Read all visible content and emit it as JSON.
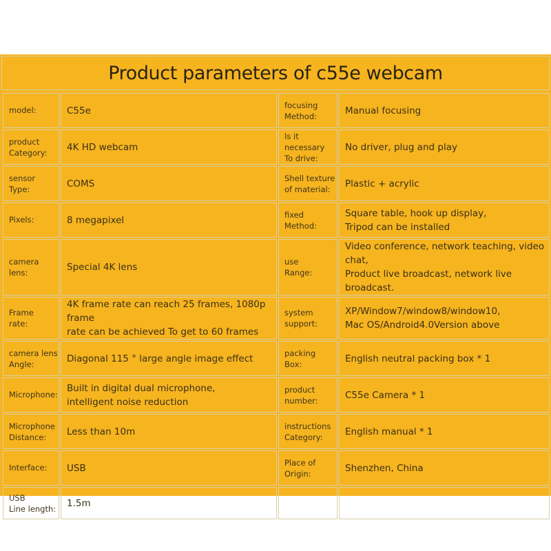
{
  "title": "Product parameters of c55e webcam",
  "rows": [
    {
      "left_label": "model:",
      "left_value": "C55e",
      "right_label": "focusing\nMethod:",
      "right_value": "Manual focusing"
    },
    {
      "left_label": "product\nCategory:",
      "left_value": "4K HD webcam",
      "right_label": "Is it necessary\nTo drive:",
      "right_value": "No driver, plug and play"
    },
    {
      "left_label": "sensor\nType:",
      "left_value": "COMS",
      "right_label": "Shell texture\nof material:",
      "right_value": "Plastic + acrylic"
    },
    {
      "left_label": "Pixels:",
      "left_value": "8 megapixel",
      "right_label": "fixed\nMethod:",
      "right_value": "Square table, hook up display,\nTripod can be installed"
    },
    {
      "left_label": "camera\nlens:",
      "left_value": "Special 4K lens",
      "right_label": "use\nRange:",
      "right_value": "Video conference, network teaching, video chat,\nProduct live broadcast, network live broadcast."
    },
    {
      "left_label": "Frame\nrate:",
      "left_value": "4K frame rate can reach 25 frames, 1080p frame\nrate can be achieved  To get to 60 frames",
      "right_label": "system\nsupport:",
      "right_value": "XP/Window7/window8/window10,\nMac OS/Android4.0Version above"
    },
    {
      "left_label": "camera lens\nAngle:",
      "left_value": "Diagonal 115 ° large angle image effect",
      "right_label": "packing\nBox:",
      "right_value": "English neutral packing box * 1"
    },
    {
      "left_label": "Microphone:",
      "left_value": "Built in digital dual microphone,\nintelligent noise reduction",
      "right_label": "product\nnumber:",
      "right_value": "C55e  Camera * 1"
    },
    {
      "left_label": "Microphone\nDistance:",
      "left_value": "Less than 10m",
      "right_label": "instructions\nCategory:",
      "right_value": "English manual * 1"
    },
    {
      "left_label": "Interface:",
      "left_value": "USB",
      "right_label": "Place of\nOrigin:",
      "right_value": "Shenzhen, China"
    },
    {
      "left_label": "USB\nLine length:",
      "left_value": "1.5m",
      "right_label": "",
      "right_value": ""
    }
  ]
}
